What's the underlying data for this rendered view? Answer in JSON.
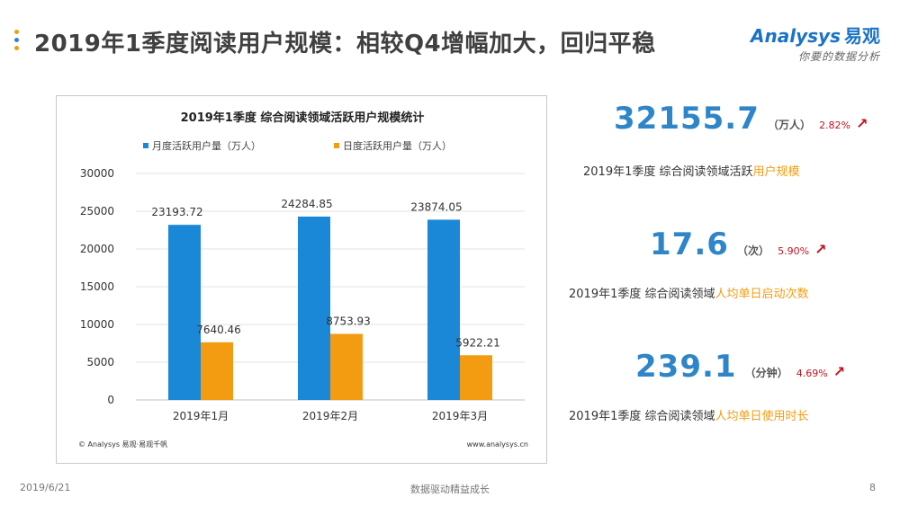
{
  "header": {
    "title": "2019年1季度阅读用户规模：相较Q4增幅加大，回归平稳",
    "dot_colors": [
      "#f39c12",
      "#2e86c9",
      "#f39c12"
    ]
  },
  "brand": {
    "name": "Analysys",
    "name_cn": "易观",
    "tagline": "你要的数据分析"
  },
  "chart_data": {
    "type": "bar",
    "title": "2019年1季度 综合阅读领域活跃用户规模统计",
    "categories": [
      "2019年1月",
      "2019年2月",
      "2019年3月"
    ],
    "series": [
      {
        "name": "月度活跃用户量（万人）",
        "color": "#1a88d6",
        "values": [
          23193.72,
          24284.85,
          23874.05
        ],
        "labels": [
          "23193.72",
          "24284.85",
          "23874.05"
        ]
      },
      {
        "name": "日度活跃用户量（万人）",
        "color": "#f39c12",
        "values": [
          7640.46,
          8753.93,
          5922.21
        ],
        "labels": [
          "7640.46",
          "8753.93",
          "5922.21"
        ]
      }
    ],
    "yticks": [
      0,
      5000,
      10000,
      15000,
      20000,
      25000,
      30000
    ],
    "ylim": [
      0,
      30000
    ],
    "grid": true,
    "legend": "top",
    "source": "© Analysys 易观·易观千帆",
    "site": "www.analysys.cn"
  },
  "kpis": [
    {
      "value": "32155.7",
      "unit": "（万人）",
      "change": "2.82%",
      "desc_prefix": "2019年1季度 综合阅读领域活跃",
      "desc_highlight": "用户规模"
    },
    {
      "value": "17.6",
      "unit": "（次）",
      "change": "5.90%",
      "desc_prefix": "2019年1季度 综合阅读领域",
      "desc_highlight": "人均单日启动次数"
    },
    {
      "value": "239.1",
      "unit": "（分钟）",
      "change": "4.69%",
      "desc_prefix": "2019年1季度 综合阅读领域",
      "desc_highlight": "人均单日使用时长"
    }
  ],
  "footer": {
    "date": "2019/6/21",
    "slogan": "数据驱动精益成长",
    "page": "8"
  }
}
